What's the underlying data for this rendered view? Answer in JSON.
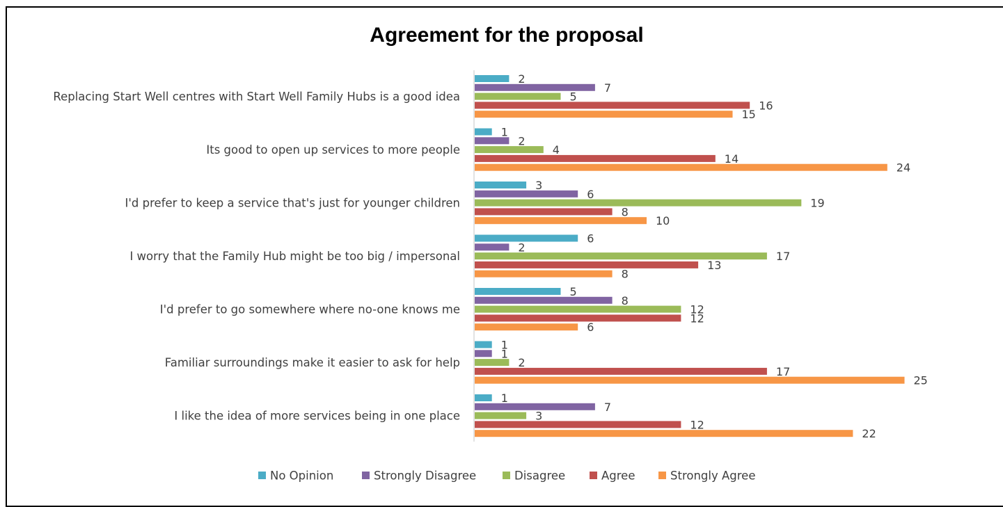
{
  "chart_data": {
    "type": "bar",
    "orientation": "horizontal",
    "title": "Agreement for the proposal",
    "xlabel": "",
    "ylabel": "",
    "xlim": [
      0,
      26
    ],
    "grid": false,
    "legend_position": "bottom",
    "categories": [
      "Replacing Start Well centres with Start Well Family Hubs is a good idea",
      "Its good to open up services to more people",
      "I'd prefer to keep a service that's just for younger children",
      "I worry that the Family Hub might be too big / impersonal",
      "I'd prefer to go somewhere where no-one knows me",
      "Familiar surroundings make it easier to ask for help",
      "I like the idea of more services being in one place"
    ],
    "series": [
      {
        "name": "No Opinion",
        "color": "#4BACC6",
        "values": [
          2,
          1,
          3,
          6,
          5,
          1,
          1
        ]
      },
      {
        "name": "Strongly Disagree",
        "color": "#8064A2",
        "values": [
          7,
          2,
          6,
          2,
          8,
          1,
          7
        ]
      },
      {
        "name": "Disagree",
        "color": "#9BBB59",
        "values": [
          5,
          4,
          19,
          17,
          12,
          2,
          3
        ]
      },
      {
        "name": "Agree",
        "color": "#C0504D",
        "values": [
          16,
          14,
          8,
          13,
          12,
          17,
          12
        ]
      },
      {
        "name": "Strongly Agree",
        "color": "#F79646",
        "values": [
          15,
          24,
          10,
          8,
          6,
          25,
          22
        ]
      }
    ]
  }
}
